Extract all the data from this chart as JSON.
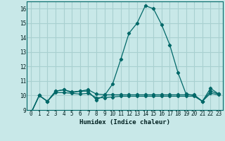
{
  "title": "",
  "xlabel": "Humidex (Indice chaleur)",
  "ylabel": "",
  "background_color": "#c8e8e8",
  "grid_color": "#a8d0d0",
  "line_color": "#006868",
  "xlim": [
    -0.5,
    23.5
  ],
  "ylim": [
    9,
    16.5
  ],
  "yticks": [
    9,
    10,
    11,
    12,
    13,
    14,
    15,
    16
  ],
  "xticks": [
    0,
    1,
    2,
    3,
    4,
    5,
    6,
    7,
    8,
    9,
    10,
    11,
    12,
    13,
    14,
    15,
    16,
    17,
    18,
    19,
    20,
    21,
    22,
    23
  ],
  "series1_x": [
    0,
    1,
    2,
    3,
    4,
    5,
    6,
    7,
    8,
    9,
    10,
    11,
    12,
    13,
    14,
    15,
    16,
    17,
    18,
    19,
    20,
    21,
    22,
    23
  ],
  "series1_y": [
    8.8,
    10.0,
    9.6,
    10.3,
    10.4,
    10.2,
    10.3,
    10.3,
    9.7,
    10.0,
    10.8,
    12.5,
    14.3,
    15.0,
    16.2,
    16.0,
    14.9,
    13.5,
    11.6,
    10.1,
    10.0,
    9.6,
    10.5,
    10.1
  ],
  "series2_x": [
    0,
    1,
    2,
    3,
    4,
    5,
    6,
    7,
    8,
    9,
    10,
    11,
    12,
    13,
    14,
    15,
    16,
    17,
    18,
    19,
    20,
    21,
    22,
    23
  ],
  "series2_y": [
    8.8,
    10.0,
    9.6,
    10.2,
    10.2,
    10.15,
    10.1,
    10.15,
    9.85,
    9.85,
    9.9,
    9.95,
    9.95,
    9.95,
    9.95,
    9.95,
    9.95,
    9.95,
    9.95,
    9.95,
    9.95,
    9.6,
    10.15,
    10.05
  ],
  "series3_x": [
    0,
    1,
    2,
    3,
    4,
    5,
    6,
    7,
    8,
    9,
    10,
    11,
    12,
    13,
    14,
    15,
    16,
    17,
    18,
    19,
    20,
    21,
    22,
    23
  ],
  "series3_y": [
    8.8,
    10.0,
    9.6,
    10.3,
    10.4,
    10.25,
    10.3,
    10.4,
    10.1,
    10.05,
    10.05,
    10.05,
    10.05,
    10.05,
    10.05,
    10.05,
    10.05,
    10.05,
    10.05,
    10.05,
    10.05,
    9.6,
    10.3,
    10.1
  ]
}
